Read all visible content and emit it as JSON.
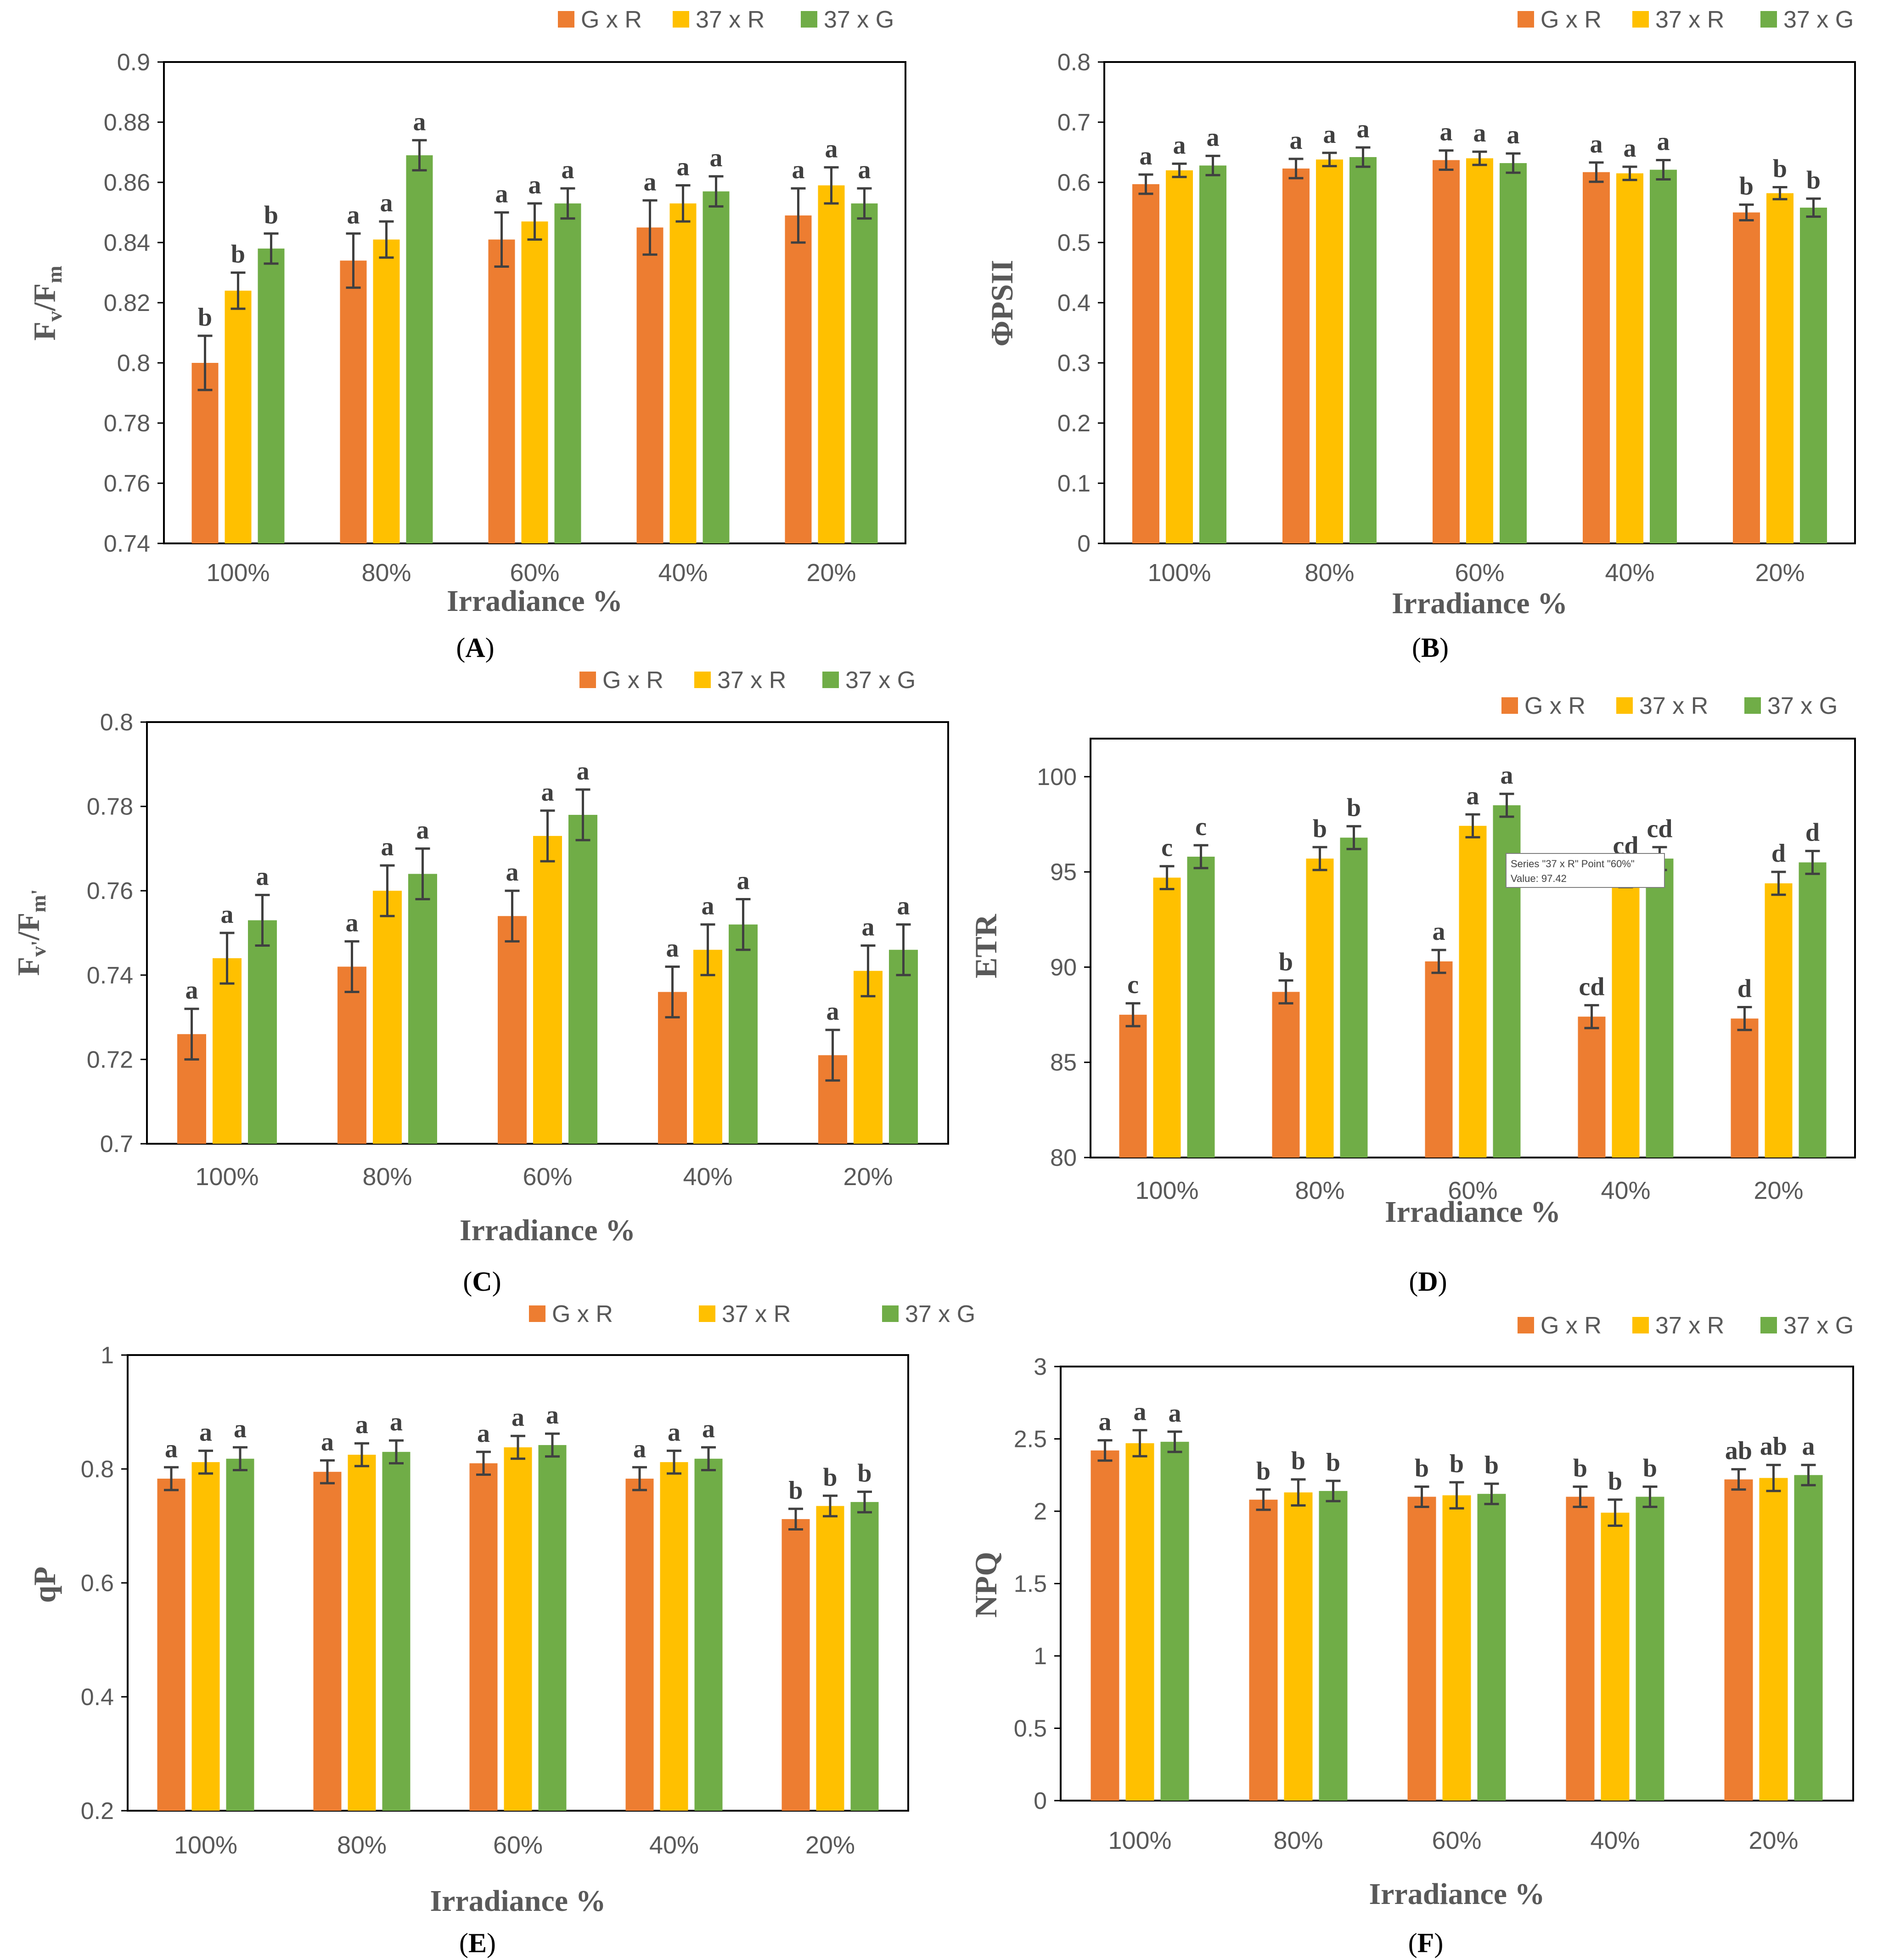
{
  "series_names": [
    "G x R",
    "37 x R",
    "37 x G"
  ],
  "colors": {
    "G x R": "#ED7D31",
    "37 x R": "#FFC000",
    "37 x G": "#70AD47",
    "error_bar": "#404040"
  },
  "chart_data": [
    {
      "type": "bar",
      "panel": "(A)",
      "panel_letter": "A",
      "ylabel": "Fv/Fm",
      "ylabel_main": "F",
      "ylabel_sub1": "v",
      "ylabel_sep": "/F",
      "ylabel_sub2": "m",
      "xlabel": "Irradiance %",
      "categories": [
        "100%",
        "80%",
        "60%",
        "40%",
        "20%"
      ],
      "ylim": [
        0.74,
        0.9
      ],
      "yticks": [
        0.74,
        0.76,
        0.78,
        0.8,
        0.82,
        0.84,
        0.86,
        0.88,
        0.9
      ],
      "ytick_labels": [
        "0.74",
        "0.76",
        "0.78",
        "0.8",
        "0.82",
        "0.84",
        "0.86",
        "0.88",
        "0.9"
      ],
      "series": [
        {
          "name": "G x R",
          "values": [
            0.8,
            0.834,
            0.841,
            0.845,
            0.849
          ],
          "errors": [
            0.009,
            0.009,
            0.009,
            0.009,
            0.009
          ],
          "letters": [
            "b",
            "a",
            "a",
            "a",
            "a"
          ]
        },
        {
          "name": "37 x R",
          "values": [
            0.824,
            0.841,
            0.847,
            0.853,
            0.859
          ],
          "errors": [
            0.006,
            0.006,
            0.006,
            0.006,
            0.006
          ],
          "letters": [
            "b",
            "a",
            "a",
            "a",
            "a"
          ]
        },
        {
          "name": "37 x G",
          "values": [
            0.838,
            0.869,
            0.853,
            0.857,
            0.853
          ],
          "errors": [
            0.005,
            0.005,
            0.005,
            0.005,
            0.005
          ],
          "letters": [
            "b",
            "a",
            "a",
            "a",
            "a"
          ]
        }
      ]
    },
    {
      "type": "bar",
      "panel": "(B)",
      "panel_letter": "B",
      "ylabel": "ΦPSII",
      "xlabel": "Irradiance  %",
      "categories": [
        "100%",
        "80%",
        "60%",
        "40%",
        "20%"
      ],
      "ylim": [
        0,
        0.8
      ],
      "yticks": [
        0,
        0.1,
        0.2,
        0.3,
        0.4,
        0.5,
        0.6,
        0.7,
        0.8
      ],
      "ytick_labels": [
        "0",
        "0.1",
        "0.2",
        "0.3",
        "0.4",
        "0.5",
        "0.6",
        "0.7",
        "0.8"
      ],
      "series": [
        {
          "name": "G x R",
          "values": [
            0.597,
            0.623,
            0.637,
            0.617,
            0.55
          ],
          "errors": [
            0.016,
            0.016,
            0.016,
            0.016,
            0.013
          ],
          "letters": [
            "a",
            "a",
            "a",
            "a",
            "b"
          ]
        },
        {
          "name": "37 x R",
          "values": [
            0.62,
            0.638,
            0.64,
            0.615,
            0.582
          ],
          "errors": [
            0.011,
            0.011,
            0.011,
            0.011,
            0.01
          ],
          "letters": [
            "a",
            "a",
            "a",
            "a",
            "b"
          ]
        },
        {
          "name": "37 x G",
          "values": [
            0.628,
            0.642,
            0.632,
            0.621,
            0.558
          ],
          "errors": [
            0.016,
            0.016,
            0.016,
            0.016,
            0.015
          ],
          "letters": [
            "a",
            "a",
            "a",
            "a",
            "b"
          ]
        }
      ]
    },
    {
      "type": "bar",
      "panel": "(C)",
      "panel_letter": "C",
      "ylabel": "Fv'/Fm'",
      "ylabel_main": "F",
      "ylabel_sub1": "v'",
      "ylabel_sep": "/F",
      "ylabel_sub2": "m'",
      "xlabel": "Irradiance %",
      "categories": [
        "100%",
        "80%",
        "60%",
        "40%",
        "20%"
      ],
      "ylim": [
        0.7,
        0.8
      ],
      "yticks": [
        0.7,
        0.72,
        0.74,
        0.76,
        0.78,
        0.8
      ],
      "ytick_labels": [
        "0.7",
        "0.72",
        "0.74",
        "0.76",
        "0.78",
        "0.8"
      ],
      "series": [
        {
          "name": "G x R",
          "values": [
            0.726,
            0.742,
            0.754,
            0.736,
            0.721
          ],
          "errors": [
            0.006,
            0.006,
            0.006,
            0.006,
            0.006
          ],
          "letters": [
            "a",
            "a",
            "a",
            "a",
            "a"
          ]
        },
        {
          "name": "37 x R",
          "values": [
            0.744,
            0.76,
            0.773,
            0.746,
            0.741
          ],
          "errors": [
            0.006,
            0.006,
            0.006,
            0.006,
            0.006
          ],
          "letters": [
            "a",
            "a",
            "a",
            "a",
            "a"
          ]
        },
        {
          "name": "37 x G",
          "values": [
            0.753,
            0.764,
            0.778,
            0.752,
            0.746
          ],
          "errors": [
            0.006,
            0.006,
            0.006,
            0.006,
            0.006
          ],
          "letters": [
            "a",
            "a",
            "a",
            "a",
            "a"
          ]
        }
      ]
    },
    {
      "type": "bar",
      "panel": "(D)",
      "panel_letter": "D",
      "ylabel": "ETR",
      "xlabel": "Irradiance %",
      "categories": [
        "100%",
        "80%",
        "60%",
        "40%",
        "20%"
      ],
      "ylim": [
        80,
        102
      ],
      "yticks": [
        80,
        85,
        90,
        95,
        100
      ],
      "ytick_labels": [
        "80",
        "85",
        "90",
        "95",
        "100"
      ],
      "series": [
        {
          "name": "G x R",
          "values": [
            87.5,
            88.7,
            90.3,
            87.4,
            87.3
          ],
          "errors": [
            0.6,
            0.6,
            0.6,
            0.6,
            0.6
          ],
          "letters": [
            "c",
            "b",
            "a",
            "cd",
            "d"
          ]
        },
        {
          "name": "37 x R",
          "values": [
            94.7,
            95.7,
            97.42,
            94.8,
            94.4
          ],
          "errors": [
            0.6,
            0.6,
            0.6,
            0.6,
            0.6
          ],
          "letters": [
            "c",
            "b",
            "a",
            "cd",
            "d"
          ]
        },
        {
          "name": "37 x G",
          "values": [
            95.8,
            96.8,
            98.5,
            95.7,
            95.5
          ],
          "errors": [
            0.6,
            0.6,
            0.6,
            0.6,
            0.6
          ],
          "letters": [
            "c",
            "b",
            "a",
            "cd",
            "d"
          ]
        }
      ],
      "tooltip": {
        "line1": "Series \"37 x R\" Point \"60%\"",
        "line2": "Value: 97.42"
      }
    },
    {
      "type": "bar",
      "panel": "(E)",
      "panel_letter": "E",
      "ylabel": "qP",
      "xlabel": "Irradiance %",
      "categories": [
        "100%",
        "80%",
        "60%",
        "40%",
        "20%"
      ],
      "ylim": [
        0.2,
        1
      ],
      "yticks": [
        0.2,
        0.4,
        0.6,
        0.8,
        1
      ],
      "ytick_labels": [
        "0.2",
        "0.4",
        "0.6",
        "0.8",
        "1"
      ],
      "series": [
        {
          "name": "G x R",
          "values": [
            0.783,
            0.795,
            0.81,
            0.783,
            0.712
          ],
          "errors": [
            0.02,
            0.02,
            0.02,
            0.02,
            0.018
          ],
          "letters": [
            "a",
            "a",
            "a",
            "a",
            "b"
          ]
        },
        {
          "name": "37 x R",
          "values": [
            0.812,
            0.825,
            0.838,
            0.812,
            0.735
          ],
          "errors": [
            0.02,
            0.02,
            0.02,
            0.02,
            0.018
          ],
          "letters": [
            "a",
            "a",
            "a",
            "a",
            "b"
          ]
        },
        {
          "name": "37 x G",
          "values": [
            0.818,
            0.83,
            0.842,
            0.818,
            0.742
          ],
          "errors": [
            0.02,
            0.02,
            0.02,
            0.02,
            0.018
          ],
          "letters": [
            "a",
            "a",
            "a",
            "a",
            "b"
          ]
        }
      ]
    },
    {
      "type": "bar",
      "panel": "(F)",
      "panel_letter": "F",
      "ylabel": "NPQ",
      "xlabel": "Irradiance %",
      "categories": [
        "100%",
        "80%",
        "60%",
        "40%",
        "20%"
      ],
      "ylim": [
        0,
        3
      ],
      "yticks": [
        0,
        0.5,
        1,
        1.5,
        2,
        2.5,
        3
      ],
      "ytick_labels": [
        "0",
        "0.5",
        "1",
        "1.5",
        "2",
        "2.5",
        "3"
      ],
      "series": [
        {
          "name": "G x R",
          "values": [
            2.42,
            2.08,
            2.1,
            2.1,
            2.22
          ],
          "errors": [
            0.07,
            0.07,
            0.07,
            0.07,
            0.07
          ],
          "letters": [
            "a",
            "b",
            "b",
            "b",
            "ab"
          ]
        },
        {
          "name": "37 x R",
          "values": [
            2.47,
            2.13,
            2.11,
            1.99,
            2.23
          ],
          "errors": [
            0.09,
            0.09,
            0.09,
            0.09,
            0.09
          ],
          "letters": [
            "a",
            "b",
            "b",
            "b",
            "ab"
          ]
        },
        {
          "name": "37 x G",
          "values": [
            2.48,
            2.14,
            2.12,
            2.1,
            2.25
          ],
          "errors": [
            0.07,
            0.07,
            0.07,
            0.07,
            0.07
          ],
          "letters": [
            "a",
            "b",
            "b",
            "b",
            "a"
          ]
        }
      ]
    }
  ]
}
